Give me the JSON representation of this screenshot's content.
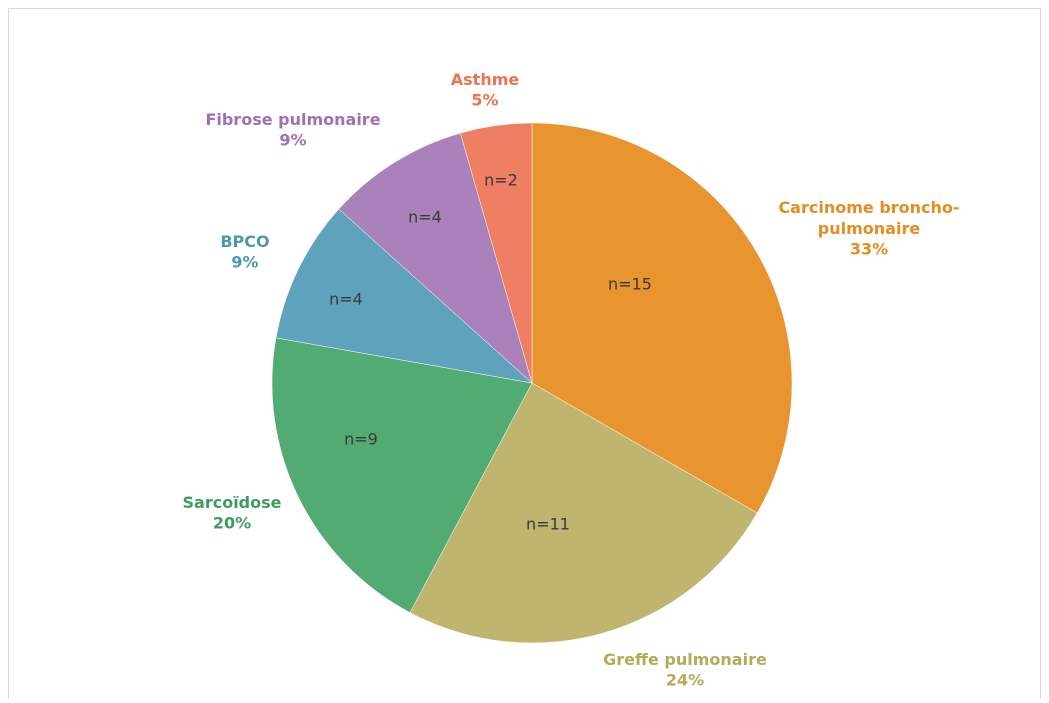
{
  "chart_data": {
    "type": "pie",
    "categories": [
      "Carcinome broncho-pulmonaire",
      "Greffe pulmonaire",
      "Sarcoïdose",
      "BPCO",
      "Fibrose pulmonaire",
      "Asthme"
    ],
    "values": [
      15,
      11,
      9,
      4,
      4,
      2
    ],
    "value_labels": [
      "n=15",
      "n=11",
      "n=9",
      "n=4",
      "n=4",
      "n=2"
    ],
    "percentage_labels": [
      "33%",
      "24%",
      "20%",
      "9%",
      "9%",
      "5%"
    ],
    "colors": [
      "#e8952f",
      "#bfb56f",
      "#52ab72",
      "#5ea3bb",
      "#ab81bb",
      "#ef7f62"
    ]
  }
}
